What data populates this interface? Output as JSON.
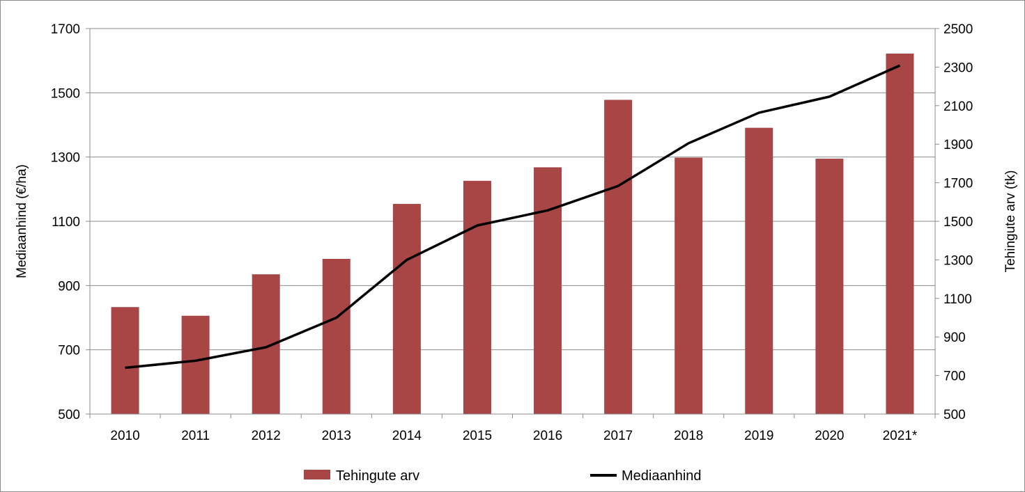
{
  "chart_data": {
    "type": "bar+line",
    "categories": [
      "2010",
      "2011",
      "2012",
      "2013",
      "2014",
      "2015",
      "2016",
      "2017",
      "2018",
      "2019",
      "2020",
      "2021*"
    ],
    "series": [
      {
        "name": "Tehingute arv",
        "type": "bar",
        "axis": "right",
        "color": "#A84646",
        "values": [
          1055,
          1010,
          1225,
          1305,
          1590,
          1710,
          1780,
          2130,
          1830,
          1985,
          1825,
          2370
        ]
      },
      {
        "name": "Mediaanhind",
        "type": "line",
        "axis": "left",
        "color": "#000000",
        "values": [
          644,
          666,
          708,
          800,
          980,
          1087,
          1134,
          1210,
          1343,
          1438,
          1488,
          1585
        ]
      }
    ],
    "left_axis": {
      "label": "Mediaanhind (€/ha)",
      "min": 500,
      "max": 1700,
      "ticks": [
        "500",
        "700",
        "900",
        "1100",
        "1300",
        "1500",
        "1700"
      ]
    },
    "right_axis": {
      "label": "Tehingute arv (tk)",
      "min": 500,
      "max": 2500,
      "ticks": [
        "500",
        "700",
        "900",
        "1100",
        "1300",
        "1500",
        "1700",
        "1900",
        "2100",
        "2300",
        "2500"
      ]
    },
    "grid": true,
    "legend_position": "bottom"
  }
}
